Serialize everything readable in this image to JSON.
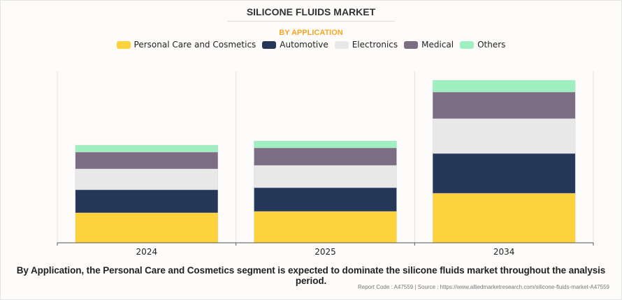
{
  "chart_data": {
    "type": "bar",
    "stacked": true,
    "title": "SILICONE FLUIDS MARKET",
    "subtitle": "BY APPLICATION",
    "xlabel": "",
    "ylabel": "",
    "categories": [
      "2024",
      "2025",
      "2034"
    ],
    "series": [
      {
        "name": "Personal Care and Cosmetics",
        "color": "#fdd23b",
        "values": [
          43,
          45,
          71
        ]
      },
      {
        "name": "Automotive",
        "color": "#263859",
        "values": [
          33,
          34,
          57
        ]
      },
      {
        "name": "Electronics",
        "color": "#e8e8e8",
        "values": [
          30,
          32,
          50
        ]
      },
      {
        "name": "Medical",
        "color": "#7d6d83",
        "values": [
          24,
          25,
          38
        ]
      },
      {
        "name": "Others",
        "color": "#a0efc0",
        "values": [
          10,
          10,
          17
        ]
      }
    ],
    "ylim": [
      0,
      246
    ],
    "grid": "vertical category separators",
    "legend": "top-center"
  },
  "caption": "By Application, the Personal Care and Cosmetics segment is expected to dominate the silicone fluids market throughout the analysis period.",
  "footer": "Report Code : A47559  |  Source : https://www.alliedmarketresearch.com/silicone-fluids-market-A47559"
}
